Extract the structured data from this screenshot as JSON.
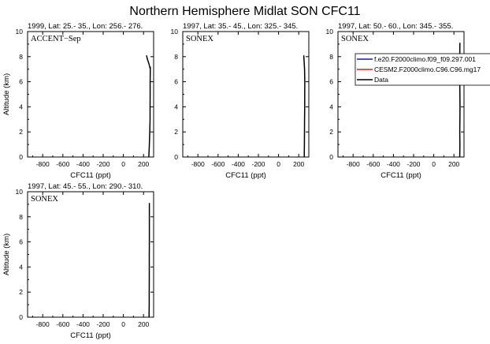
{
  "title": "Northern Hemisphere Midlat SON CFC11",
  "legend": {
    "entries": [
      {
        "label": "f.e20.F2000climo.f09_f09.297.001",
        "color": "#1a1aa6"
      },
      {
        "label": "CESM2.F2000climo.C96.C96.mg17",
        "color": "#e31a1a"
      },
      {
        "label": "Data",
        "color": "#000000"
      }
    ]
  },
  "chart_data": [
    {
      "type": "line",
      "subtitle": "1999, Lat: 25.- 35., Lon: 256.- 276.",
      "campaign": "ACCENT−Sep",
      "xlabel": "CFC11 (ppt)",
      "ylabel": "Altitude (km)",
      "xlim": [
        -950,
        300
      ],
      "ylim": [
        0,
        10
      ],
      "xticks": [
        "-800",
        "-600",
        "-400",
        "-200",
        "0",
        "200"
      ],
      "yticks": [
        "0",
        "2",
        "4",
        "6",
        "8",
        "10"
      ],
      "series": [
        {
          "name": "Data",
          "color": "#000000",
          "x": [
            252,
            258,
            262,
            265,
            265,
            266,
            266,
            267,
            267
          ],
          "y": [
            0.0,
            1.0,
            2.0,
            3.0,
            4.0,
            5.0,
            6.0,
            7.0,
            7.2
          ]
        },
        {
          "name": "Data",
          "color": "#000000",
          "x": [
            267,
            255,
            238,
            230
          ],
          "y": [
            7.0,
            7.4,
            7.8,
            8.1
          ]
        }
      ]
    },
    {
      "type": "line",
      "subtitle": "1997, Lat: 35.- 45., Lon: 325.- 345.",
      "campaign": "SONEX",
      "xlabel": "CFC11 (ppt)",
      "ylabel": "",
      "xlim": [
        -950,
        300
      ],
      "ylim": [
        0,
        10
      ],
      "xticks": [
        "-800",
        "-600",
        "-400",
        "-200",
        "0",
        "200"
      ],
      "yticks": [
        "0",
        "2",
        "4",
        "6",
        "8",
        "10"
      ],
      "series": [
        {
          "name": "Data",
          "color": "#000000",
          "x": [
            255,
            256,
            257,
            258,
            259,
            259,
            260,
            258,
            250
          ],
          "y": [
            0.0,
            1.0,
            2.0,
            3.0,
            4.0,
            5.0,
            6.0,
            7.0,
            8.1
          ]
        }
      ]
    },
    {
      "type": "line",
      "subtitle": "1997, Lat: 50.- 60., Lon: 345.- 355.",
      "campaign": "SONEX",
      "xlabel": "CFC11 (ppt)",
      "ylabel": "",
      "xlim": [
        -950,
        300
      ],
      "ylim": [
        0,
        10
      ],
      "xticks": [
        "-800",
        "-600",
        "-400",
        "-200",
        "0",
        "200"
      ],
      "yticks": [
        "0",
        "2",
        "4",
        "6",
        "8",
        "10"
      ],
      "series": [
        {
          "name": "Data",
          "color": "#000000",
          "x": [
            258,
            259,
            258,
            259,
            260,
            259,
            258,
            259,
            258,
            259
          ],
          "y": [
            0.0,
            1.0,
            2.0,
            3.0,
            4.0,
            5.0,
            6.0,
            7.0,
            8.0,
            9.1
          ]
        }
      ]
    },
    {
      "type": "line",
      "subtitle": "1997, Lat: 45.- 55., Lon: 290.- 310.",
      "campaign": "SONEX",
      "xlabel": "CFC11 (ppt)",
      "ylabel": "Altitude (km)",
      "xlim": [
        -950,
        300
      ],
      "ylim": [
        0,
        10
      ],
      "xticks": [
        "-800",
        "-600",
        "-400",
        "-200",
        "0",
        "200"
      ],
      "yticks": [
        "0",
        "2",
        "4",
        "6",
        "8",
        "10"
      ],
      "series": [
        {
          "name": "Data",
          "color": "#000000",
          "x": [
            255,
            256,
            256,
            257,
            257,
            257,
            258,
            258,
            258,
            258
          ],
          "y": [
            0.0,
            1.0,
            2.0,
            3.0,
            4.0,
            5.0,
            6.0,
            7.0,
            8.0,
            9.1
          ]
        }
      ]
    }
  ]
}
